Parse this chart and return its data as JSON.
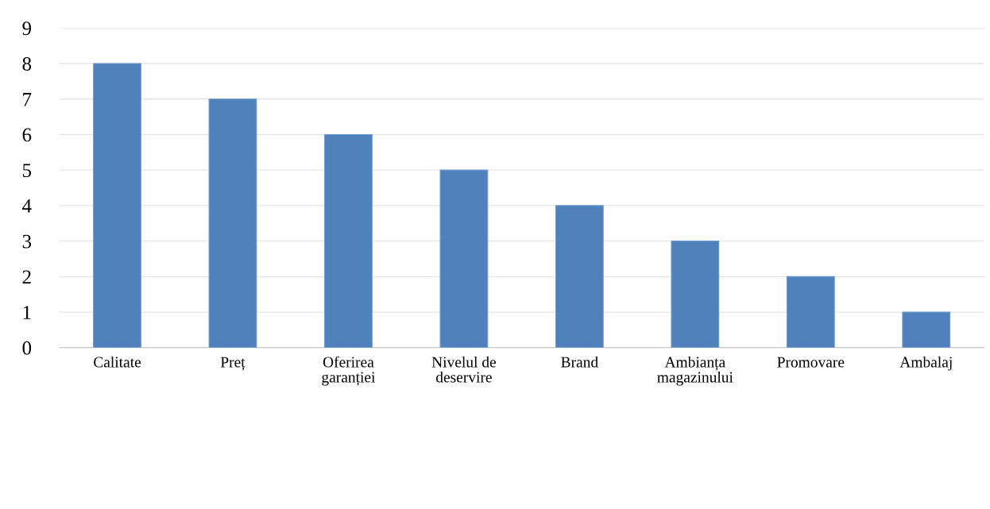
{
  "chart_data": {
    "type": "bar",
    "categories": [
      "Calitate",
      "Preț",
      "Oferirea\ngaranției",
      "Nivelul de\ndeservire",
      "Brand",
      "Ambianța\nmagazinului",
      "Promovare",
      "Ambalaj"
    ],
    "values": [
      8,
      7,
      6,
      5,
      4,
      3,
      2,
      1
    ],
    "color": "#4f81bd",
    "ylim": [
      0,
      9
    ],
    "yticks": [
      0,
      1,
      2,
      3,
      4,
      5,
      6,
      7,
      8,
      9
    ],
    "grid": "y"
  }
}
